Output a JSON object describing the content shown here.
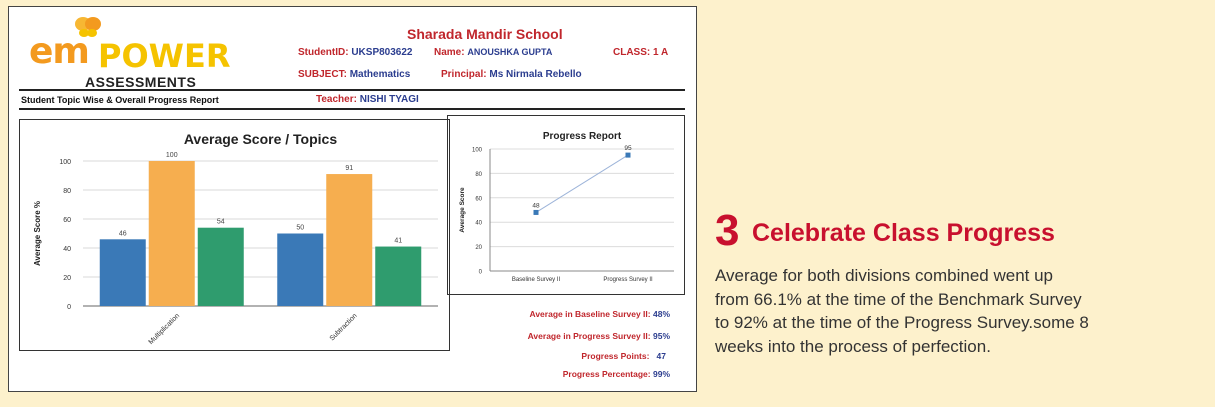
{
  "logo": {
    "em": "em",
    "power": "POWER",
    "sub": "ASSESSMENTS"
  },
  "header": {
    "school": "Sharada Mandir School",
    "student_id_label": "StudentID:",
    "student_id": "UKSP803622",
    "name_label": "Name:",
    "name": "ANOUSHKA  GUPTA",
    "class_label": "CLASS:",
    "class": "1  A",
    "subject_label": "SUBJECT:",
    "subject": "Mathematics",
    "principal_label": "Principal:",
    "principal": "Ms Nirmala Rebello",
    "report_title": "Student Topic Wise & Overall Progress Report",
    "teacher_label": "Teacher:",
    "teacher": "NISHI TYAGI"
  },
  "stats": {
    "baseline_label": "Average in Baseline Survey II:",
    "baseline_value": "48%",
    "progress_label": "Average in Progress Survey II:",
    "progress_value": "95%",
    "points_label": "Progress Points:",
    "points_value": "47",
    "percentage_label": "Progress Percentage:",
    "percentage_value": "99%"
  },
  "chart_data": [
    {
      "type": "bar",
      "title": "Average Score / Topics",
      "ylabel": "Average Score %",
      "xlabel": "",
      "categories": [
        "Multiplication",
        "Subtraction"
      ],
      "series": [
        {
          "values": [
            46,
            50
          ],
          "color": "#3a79b7"
        },
        {
          "values": [
            100,
            91
          ],
          "color": "#f6ae4f"
        },
        {
          "values": [
            54,
            41
          ],
          "color": "#2f9c6e"
        }
      ],
      "ylim": [
        0,
        100
      ],
      "yticks": [
        0,
        20,
        40,
        60,
        80,
        100
      ],
      "grid": true
    },
    {
      "type": "line",
      "title": "Progress Report",
      "ylabel": "Average Score",
      "xlabel": "",
      "categories": [
        "Baseline Survey II",
        "Progress Survey II"
      ],
      "values": [
        48,
        95
      ],
      "ylim": [
        0,
        100
      ],
      "yticks": [
        0,
        20,
        40,
        60,
        80,
        100
      ],
      "color": "#3a79b7",
      "grid": true
    }
  ],
  "side": {
    "number": "3",
    "heading": "Celebrate Class Progress",
    "lines": [
      "Average for both divisions combined went up",
      "from 66.1% at the time of the Benchmark Survey",
      "to 92% at the time of the Progress Survey.some 8",
      "weeks into the process of perfection."
    ]
  }
}
